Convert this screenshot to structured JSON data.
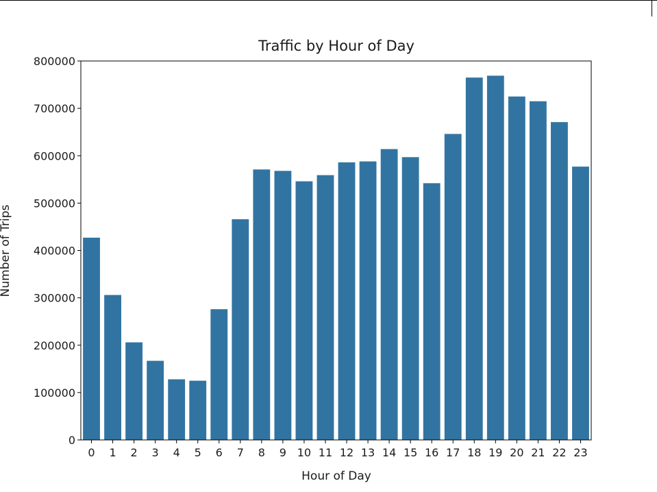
{
  "chart_data": {
    "type": "bar",
    "title": "Traffic by Hour of Day",
    "xlabel": "Hour of Day",
    "ylabel": "Number of Trips",
    "categories": [
      "0",
      "1",
      "2",
      "3",
      "4",
      "5",
      "6",
      "7",
      "8",
      "9",
      "10",
      "11",
      "12",
      "13",
      "14",
      "15",
      "16",
      "17",
      "18",
      "19",
      "20",
      "21",
      "22",
      "23"
    ],
    "values": [
      427000,
      306000,
      206000,
      167000,
      128000,
      125000,
      276000,
      466000,
      571000,
      568000,
      546000,
      559000,
      586000,
      588000,
      614000,
      597000,
      542000,
      646000,
      765000,
      769000,
      725000,
      715000,
      671000,
      577000
    ],
    "ylim": [
      0,
      800000
    ],
    "yticks": [
      0,
      100000,
      200000,
      300000,
      400000,
      500000,
      600000,
      700000,
      800000
    ],
    "ytick_labels": [
      "0",
      "100000",
      "200000",
      "300000",
      "400000",
      "500000",
      "600000",
      "700000",
      "800000"
    ],
    "bar_color": "#3274a1",
    "grid": false,
    "legend": "none"
  }
}
